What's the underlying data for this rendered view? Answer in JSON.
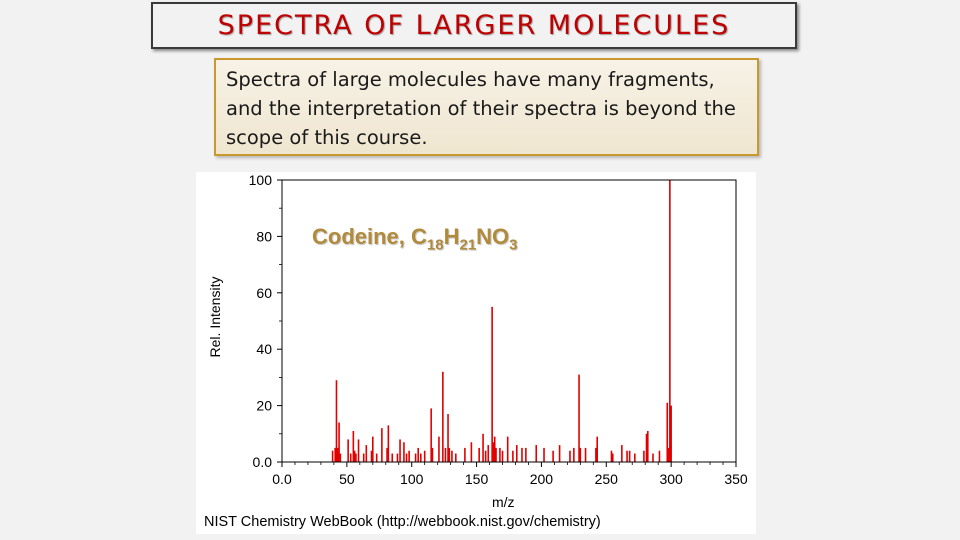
{
  "slide": {
    "title": "SPECTRA OF LARGER MOLECULES",
    "note": "Spectra of large molecules have many fragments, and the interpretation of their spectra is beyond the scope of this course."
  },
  "chart_data": {
    "type": "bar",
    "compound_name": "Codeine, ",
    "formula_parts": [
      "C",
      "18",
      "H",
      "21",
      "NO",
      "3"
    ],
    "xlabel": "m/z",
    "ylabel": "Rel. Intensity",
    "source": "NIST Chemistry WebBook (http://webbook.nist.gov/chemistry)",
    "xlim": [
      0,
      350
    ],
    "ylim": [
      0,
      100
    ],
    "xticks": [
      0,
      50,
      100,
      150,
      200,
      250,
      300,
      350
    ],
    "xtick_labels": [
      "0.0",
      "50",
      "100",
      "150",
      "200",
      "250",
      "300",
      "350"
    ],
    "yticks": [
      0,
      20,
      40,
      60,
      80,
      100
    ],
    "ytick_labels": [
      "0.0",
      "20",
      "40",
      "60",
      "80",
      "100"
    ],
    "bar_color": "#e00000",
    "grid": false,
    "peaks": [
      [
        39,
        4
      ],
      [
        41,
        5
      ],
      [
        42,
        29
      ],
      [
        43,
        5
      ],
      [
        44,
        14
      ],
      [
        45,
        3
      ],
      [
        51,
        8
      ],
      [
        53,
        3
      ],
      [
        55,
        11
      ],
      [
        56,
        4
      ],
      [
        57,
        3
      ],
      [
        59,
        8
      ],
      [
        63,
        3
      ],
      [
        65,
        6
      ],
      [
        69,
        4
      ],
      [
        70,
        9
      ],
      [
        73,
        3
      ],
      [
        77,
        12
      ],
      [
        81,
        5
      ],
      [
        82,
        13
      ],
      [
        85,
        3
      ],
      [
        89,
        3
      ],
      [
        91,
        8
      ],
      [
        94,
        7
      ],
      [
        96,
        3
      ],
      [
        98,
        4
      ],
      [
        103,
        3
      ],
      [
        105,
        5
      ],
      [
        107,
        3
      ],
      [
        110,
        4
      ],
      [
        115,
        19
      ],
      [
        116,
        5
      ],
      [
        121,
        9
      ],
      [
        124,
        32
      ],
      [
        126,
        5
      ],
      [
        128,
        17
      ],
      [
        129,
        5
      ],
      [
        131,
        4
      ],
      [
        134,
        3
      ],
      [
        141,
        5
      ],
      [
        146,
        7
      ],
      [
        152,
        5
      ],
      [
        155,
        10
      ],
      [
        157,
        4
      ],
      [
        159,
        6
      ],
      [
        162,
        55
      ],
      [
        163,
        7
      ],
      [
        164,
        9
      ],
      [
        165,
        5
      ],
      [
        168,
        5
      ],
      [
        170,
        4
      ],
      [
        174,
        9
      ],
      [
        178,
        4
      ],
      [
        181,
        6
      ],
      [
        185,
        5
      ],
      [
        188,
        5
      ],
      [
        196,
        6
      ],
      [
        202,
        5
      ],
      [
        209,
        4
      ],
      [
        214,
        6
      ],
      [
        222,
        4
      ],
      [
        225,
        5
      ],
      [
        229,
        31
      ],
      [
        230,
        5
      ],
      [
        234,
        5
      ],
      [
        242,
        5
      ],
      [
        243,
        9
      ],
      [
        254,
        4
      ],
      [
        255,
        3
      ],
      [
        262,
        6
      ],
      [
        266,
        4
      ],
      [
        268,
        4
      ],
      [
        272,
        3
      ],
      [
        279,
        4
      ],
      [
        281,
        10
      ],
      [
        282,
        11
      ],
      [
        286,
        3
      ],
      [
        291,
        4
      ],
      [
        297,
        21
      ],
      [
        298,
        5
      ],
      [
        299,
        100
      ],
      [
        300,
        20
      ]
    ]
  }
}
